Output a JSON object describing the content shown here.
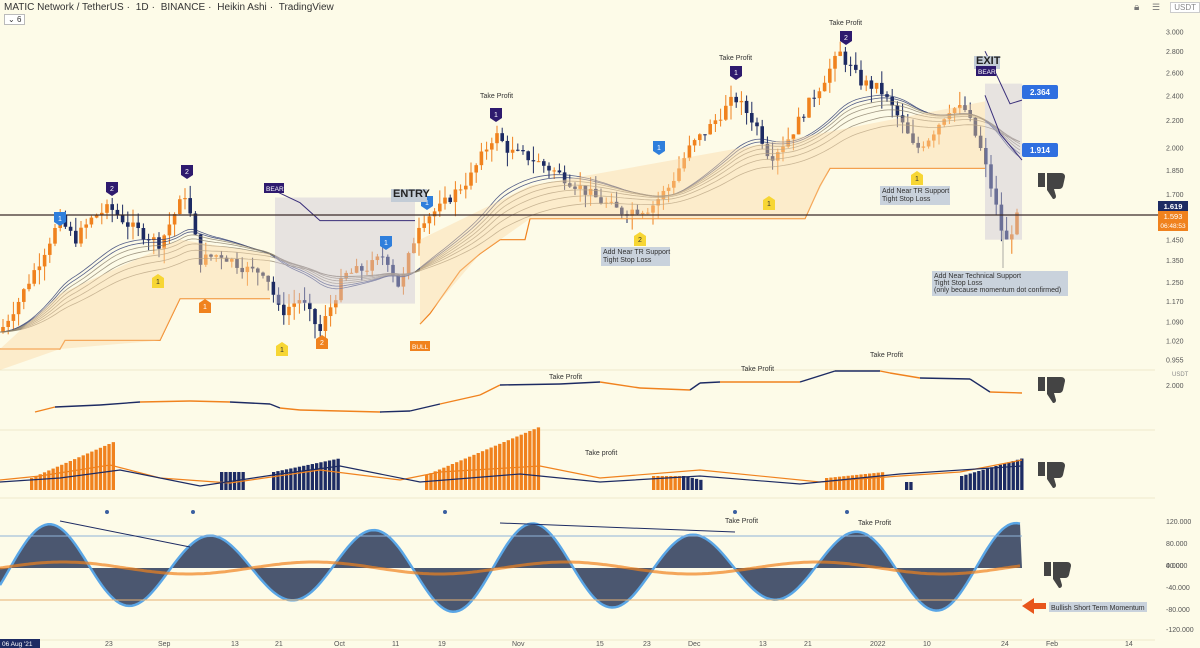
{
  "header": {
    "symbol": "MATIC Network / TetherUS",
    "interval": "1D",
    "exchange": "BINANCE",
    "chart_style": "Heikin Ashi",
    "platform": "TradingView",
    "indicators_count": "6",
    "currency": "USDT",
    "currency_sub": "USDT"
  },
  "chart_data": {
    "type": "candlestick",
    "title": "MATIC Network / TetherUS · 1D · BINANCE · Heikin Ashi · TradingView",
    "price_axis": [
      "3.000",
      "2.800",
      "2.600",
      "2.400",
      "2.200",
      "2.000",
      "1.850",
      "1.700",
      "1.450",
      "1.350",
      "1.250",
      "1.170",
      "1.090",
      "1.020",
      "0.955"
    ],
    "ylim": [
      0.92,
      3.1
    ],
    "scale": "log",
    "x_axis": [
      "06 Aug '21",
      "23",
      "Sep",
      "13",
      "21",
      "Oct",
      "11",
      "19",
      "Nov",
      "15",
      "23",
      "Dec",
      "13",
      "21",
      "2022",
      "10",
      "24",
      "Feb",
      "14"
    ],
    "current_price_line": "1.619",
    "price_tag": "1.593",
    "countdown": "06:48:53",
    "target_high": "2.364",
    "target_low": "1.914",
    "annotations": {
      "entry": "ENTRY",
      "exit": "EXIT",
      "bear1": "BEAR",
      "bear2": "BEAR",
      "bull": "BULL",
      "take_profit": "Take Profit",
      "take_profit_lower": "Take profit",
      "tr_support": "Add Near TR Support",
      "tr_stop": "Tight Stop Loss",
      "near_tr2": "Add Near TR Support",
      "near_tr2_stop": "Tight Stop Loss",
      "tech_support": "Add Near Technical Support",
      "tech_stop": "Tight Stop Loss",
      "tech_note": "(only because momentum dot confirmed)",
      "bullish_momentum": "Bullish Short Term Momentum"
    },
    "badge_values": [
      "1",
      "2",
      "1",
      "2",
      "1",
      "1",
      "2",
      "1",
      "1",
      "1",
      "2",
      "1",
      "1",
      "1"
    ],
    "panel2_axis": [
      "2.000"
    ],
    "panel4_axis": [
      "120.000",
      "80.000",
      "40.000",
      "0.000",
      "-40.000",
      "-80.000",
      "-120.000"
    ]
  },
  "colors": {
    "orange": "#f0821e",
    "navy": "#1d2b63",
    "blue": "#2f7fdc",
    "purple": "#2e1a6e",
    "yellow": "#f7d634",
    "bg": "#fdfbe8"
  }
}
